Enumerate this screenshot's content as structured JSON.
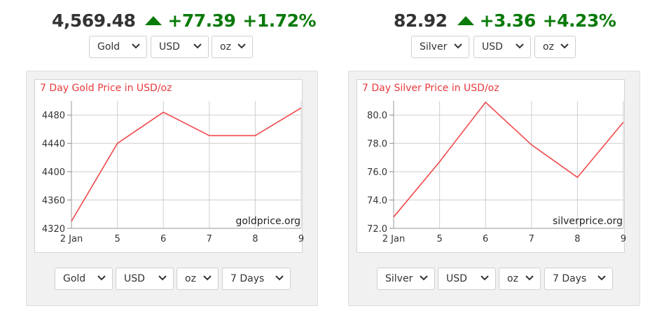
{
  "gold_ticker": {
    "price": "4,569.48",
    "change": "+77.39",
    "change_pct": "+1.72%"
  },
  "silver_ticker": {
    "price": "82.92",
    "change": "+3.36",
    "change_pct": "+4.23%"
  },
  "gold_top_selects": {
    "metal": "Gold",
    "currency": "USD",
    "unit": "oz"
  },
  "silver_top_selects": {
    "metal": "Silver",
    "currency": "USD",
    "unit": "oz"
  },
  "gold_bottom_selects": {
    "metal": "Gold",
    "currency": "USD",
    "unit": "oz",
    "period": "7 Days"
  },
  "silver_bottom_selects": {
    "metal": "Silver",
    "currency": "USD",
    "unit": "oz",
    "period": "7 Days"
  },
  "colors": {
    "up": "#0a7a0a",
    "line": "#f0484a",
    "title": "#e8393c",
    "grid": "#cfcfcf"
  },
  "icons": {
    "up": "triangle-up-icon",
    "dropdown": "chevron-down-icon"
  },
  "chart_data": [
    {
      "type": "line",
      "title": "7 Day Gold Price in USD/oz",
      "watermark": "goldprice.org",
      "x": [
        "2 Jan",
        "5",
        "6",
        "7",
        "8",
        "9"
      ],
      "y": [
        4330,
        4440,
        4484,
        4451,
        4451,
        4490
      ],
      "ylim": [
        4320,
        4500
      ],
      "yticks": [
        "4320",
        "4360",
        "4400",
        "4440",
        "4480"
      ],
      "yticks_values": [
        4320,
        4360,
        4400,
        4440,
        4480
      ],
      "grid": true
    },
    {
      "type": "line",
      "title": "7 Day Silver Price in USD/oz",
      "watermark": "silverprice.org",
      "x": [
        "2 Jan",
        "5",
        "6",
        "7",
        "8",
        "9"
      ],
      "y": [
        72.8,
        76.7,
        80.9,
        77.9,
        75.6,
        79.5
      ],
      "ylim": [
        72.0,
        81.0
      ],
      "yticks": [
        "72.0",
        "74.0",
        "76.0",
        "78.0",
        "80.0"
      ],
      "yticks_values": [
        72,
        74,
        76,
        78,
        80
      ],
      "grid": true
    }
  ]
}
